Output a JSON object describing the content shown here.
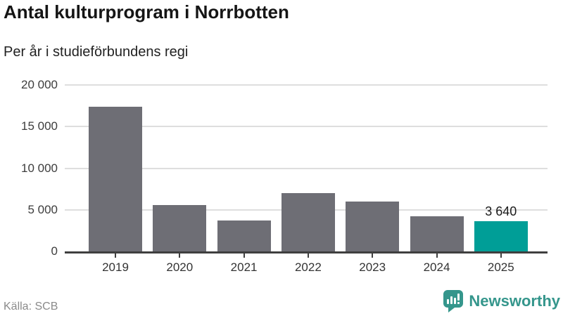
{
  "header": {
    "title": "Antal kulturprogram i Norrbotten",
    "subtitle": "Per år i studieförbundens regi"
  },
  "chart_data": {
    "type": "bar",
    "title": "Antal kulturprogram i Norrbotten",
    "subtitle": "Per år i studieförbundens regi",
    "categories": [
      "2019",
      "2020",
      "2021",
      "2022",
      "2023",
      "2024",
      "2025"
    ],
    "values": [
      17400,
      5600,
      3700,
      7000,
      6000,
      4250,
      3640
    ],
    "highlight_index": 6,
    "data_label": {
      "index": 6,
      "text": "3 640"
    },
    "xlabel": "",
    "ylabel": "",
    "ylim": [
      0,
      20000
    ],
    "yticks": [
      {
        "value": 0,
        "label": "0"
      },
      {
        "value": 5000,
        "label": "5 000"
      },
      {
        "value": 10000,
        "label": "10 000"
      },
      {
        "value": 15000,
        "label": "15 000"
      },
      {
        "value": 20000,
        "label": "20 000"
      }
    ],
    "grid": true,
    "legend": "none",
    "bar_color": "#6e6e75",
    "highlight_color": "#009e97",
    "grid_color": "#dedede",
    "axis_color": "#3f3f3f"
  },
  "footer": {
    "source": "Källa: SCB",
    "brand": "Newsworthy",
    "brand_color": "#35968c",
    "logo_icon": "newsworthy-speech-bubble-chart-icon"
  }
}
